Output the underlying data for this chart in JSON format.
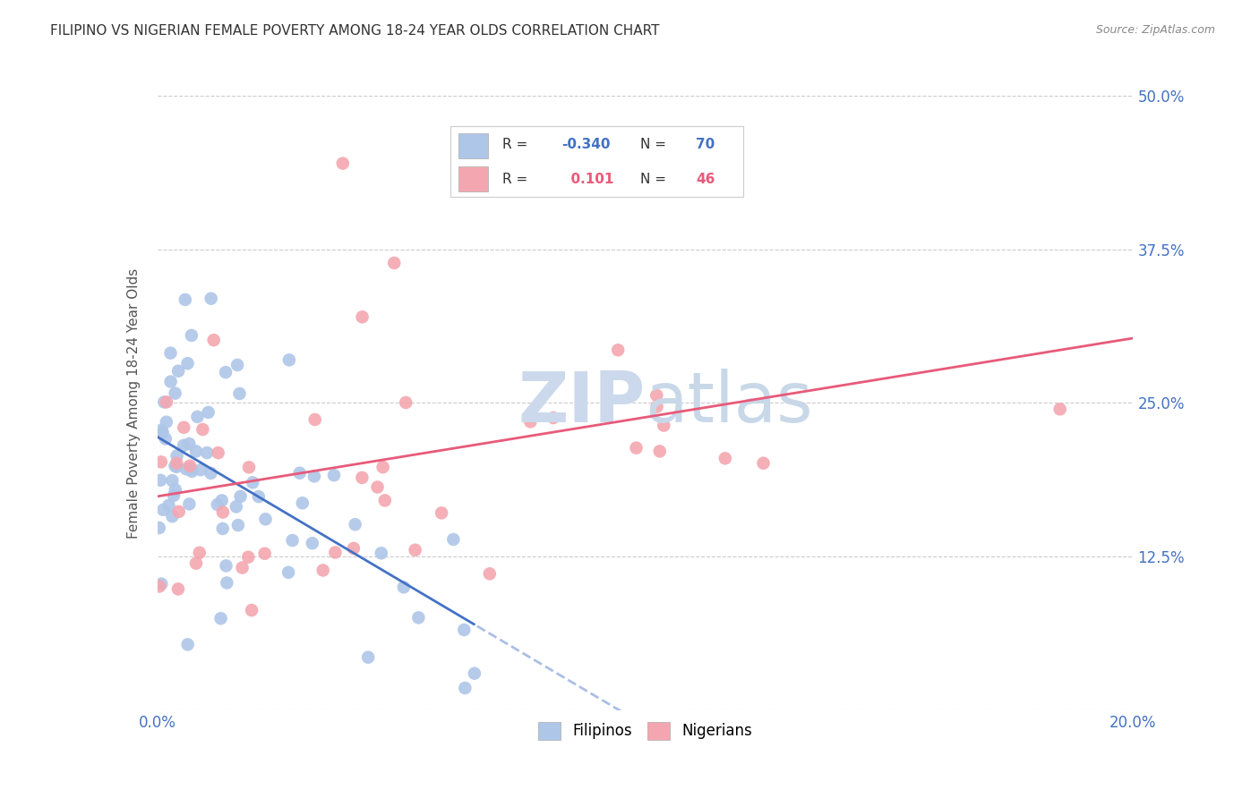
{
  "title": "FILIPINO VS NIGERIAN FEMALE POVERTY AMONG 18-24 YEAR OLDS CORRELATION CHART",
  "source": "Source: ZipAtlas.com",
  "ylabel": "Female Poverty Among 18-24 Year Olds",
  "legend_labels": [
    "Filipinos",
    "Nigerians"
  ],
  "filipino_R": -0.34,
  "filipino_N": 70,
  "nigerian_R": 0.101,
  "nigerian_N": 46,
  "filipino_color": "#aec6e8",
  "nigerian_color": "#f4a6b0",
  "filipino_line_color": "#4472c4",
  "nigerian_line_color": "#e85a7a",
  "bg_color": "#ffffff",
  "grid_color": "#cccccc",
  "axis_label_color": "#4472c4",
  "watermark_zip_color": "#ccd9ec",
  "watermark_atlas_color": "#c8d8e8"
}
